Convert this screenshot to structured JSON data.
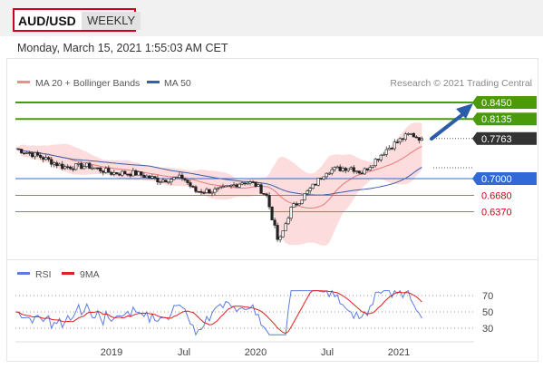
{
  "header": {
    "symbol": "AUD/USD",
    "period": "WEEKLY"
  },
  "timestamp": "Monday, March 15, 2021 1:55:03 AM CET",
  "legend": {
    "ma20": "MA 20 + Bollinger Bands",
    "ma50": "MA 50"
  },
  "copyright": "Research © 2021 Trading Central",
  "colors": {
    "resistance": "#4a9a0a",
    "support": "#e06060",
    "pivot": "#2f6ad6",
    "current": "#333333",
    "arrow": "#2a5ca8",
    "ma20": "#e87a7a",
    "ma50": "#3a5da8",
    "band": "#fbd6d6"
  },
  "price_levels": [
    {
      "value": 0.845,
      "label": "0.8450",
      "kind": "resistance"
    },
    {
      "value": 0.8135,
      "label": "0.8135",
      "kind": "resistance"
    },
    {
      "value": 0.7763,
      "label": "0.7763",
      "kind": "current"
    },
    {
      "value": 0.7,
      "label": "0.7000",
      "kind": "pivot"
    },
    {
      "value": 0.668,
      "label": "0.6680",
      "kind": "support"
    },
    {
      "value": 0.637,
      "label": "0.6370",
      "kind": "support"
    }
  ],
  "rsi_panel": {
    "legend": {
      "rsi": "RSI",
      "ma": "9MA"
    },
    "ticks": [
      70,
      50,
      30
    ],
    "tick_labels": [
      "70",
      "50",
      "30"
    ]
  },
  "x_axis": {
    "labels": [
      "2019",
      "Jul",
      "2020",
      "Jul",
      "2021"
    ]
  },
  "chart_data": {
    "type": "candlestick",
    "title": "AUD/USD WEEKLY",
    "x_labels": [
      "2019",
      "Jul",
      "2020",
      "Jul",
      "2021"
    ],
    "ylim": [
      0.56,
      0.88
    ],
    "close_anchors": [
      [
        "2018-05",
        0.757
      ],
      [
        "2018-07",
        0.742
      ],
      [
        "2018-09",
        0.722
      ],
      [
        "2018-11",
        0.724
      ],
      [
        "2019-01",
        0.711
      ],
      [
        "2019-03",
        0.71
      ],
      [
        "2019-05",
        0.697
      ],
      [
        "2019-07",
        0.702
      ],
      [
        "2019-08",
        0.676
      ],
      [
        "2019-10",
        0.677
      ],
      [
        "2019-12",
        0.694
      ],
      [
        "2020-01",
        0.69
      ],
      [
        "2020-02",
        0.667
      ],
      [
        "2020-03",
        0.576
      ],
      [
        "2020-04",
        0.641
      ],
      [
        "2020-06",
        0.688
      ],
      [
        "2020-07",
        0.715
      ],
      [
        "2020-09",
        0.722
      ],
      [
        "2020-10",
        0.711
      ],
      [
        "2020-12",
        0.755
      ],
      [
        "2021-01",
        0.771
      ],
      [
        "2021-02",
        0.785
      ],
      [
        "2021-03",
        0.776
      ]
    ],
    "rsi_range": [
      30,
      70
    ]
  }
}
